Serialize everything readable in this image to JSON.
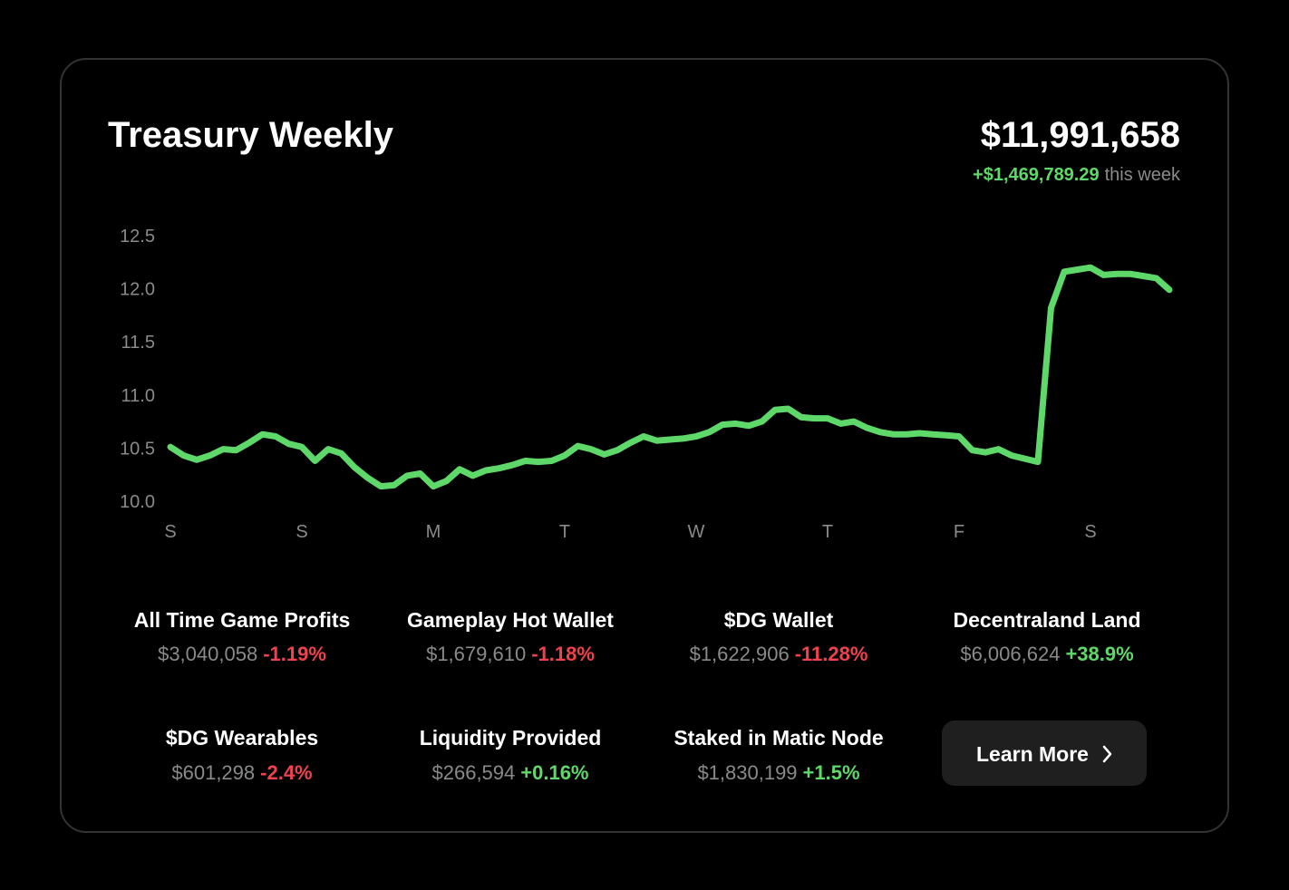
{
  "header": {
    "title": "Treasury Weekly",
    "total": "$11,991,658",
    "change": "+$1,469,789.29",
    "change_suffix": "this week"
  },
  "chart_data": {
    "type": "line",
    "categories": [
      "S",
      null,
      null,
      null,
      null,
      null,
      null,
      null,
      null,
      null,
      "S",
      null,
      null,
      null,
      null,
      null,
      null,
      null,
      null,
      null,
      "M",
      null,
      null,
      null,
      null,
      null,
      null,
      null,
      null,
      null,
      "T",
      null,
      null,
      null,
      null,
      null,
      null,
      null,
      null,
      null,
      "W",
      null,
      null,
      null,
      null,
      null,
      null,
      null,
      null,
      null,
      "T",
      null,
      null,
      null,
      null,
      null,
      null,
      null,
      null,
      null,
      "F",
      null,
      null,
      null,
      null,
      null,
      null,
      null,
      null,
      null,
      "S",
      null,
      null,
      null,
      null,
      null,
      null
    ],
    "values": [
      10.51,
      10.43,
      10.39,
      10.43,
      10.49,
      10.48,
      10.55,
      10.63,
      10.61,
      10.54,
      10.51,
      10.38,
      10.49,
      10.45,
      10.32,
      10.22,
      10.14,
      10.15,
      10.24,
      10.26,
      10.14,
      10.19,
      10.3,
      10.24,
      10.29,
      10.31,
      10.34,
      10.38,
      10.37,
      10.38,
      10.43,
      10.52,
      10.49,
      10.44,
      10.48,
      10.55,
      10.61,
      10.57,
      10.58,
      10.59,
      10.61,
      10.65,
      10.72,
      10.73,
      10.71,
      10.75,
      10.86,
      10.87,
      10.79,
      10.78,
      10.78,
      10.73,
      10.75,
      10.69,
      10.65,
      10.63,
      10.63,
      10.64,
      10.63,
      10.62,
      10.61,
      10.48,
      10.46,
      10.49,
      10.43,
      10.4,
      10.37,
      11.82,
      12.16,
      12.18,
      12.2,
      12.13,
      12.14,
      12.14,
      12.12,
      12.1,
      11.99
    ],
    "color": "#5fd86a",
    "ylim": [
      10,
      12.5
    ],
    "yticks": [
      {
        "value": 10,
        "label": "10.0"
      },
      10.5,
      {
        "value": 11,
        "label": "11.0"
      },
      11.5,
      {
        "value": 12,
        "label": "12.0"
      },
      12.5
    ],
    "grid": false
  },
  "stats": [
    {
      "name": "All Time Game Profits",
      "amount": "$3,040,058",
      "change": "-1.19%"
    },
    {
      "name": "Gameplay Hot Wallet",
      "amount": "$1,679,610",
      "change": "-1.18%"
    },
    {
      "name": "$DG Wallet",
      "amount": "$1,622,906",
      "change": "-11.28%"
    },
    {
      "name": "Decentraland Land",
      "amount": "$6,006,624",
      "change": "+38.9%"
    },
    {
      "name": "$DG Wearables",
      "amount": "$601,298",
      "change": "-2.4%"
    },
    {
      "name": "Liquidity Provided",
      "amount": "$266,594",
      "change": "+0.16%"
    },
    {
      "name": "Staked in Matic Node",
      "amount": "$1,830,199",
      "change": "+1.5%"
    }
  ],
  "button": {
    "label": "Learn More"
  }
}
